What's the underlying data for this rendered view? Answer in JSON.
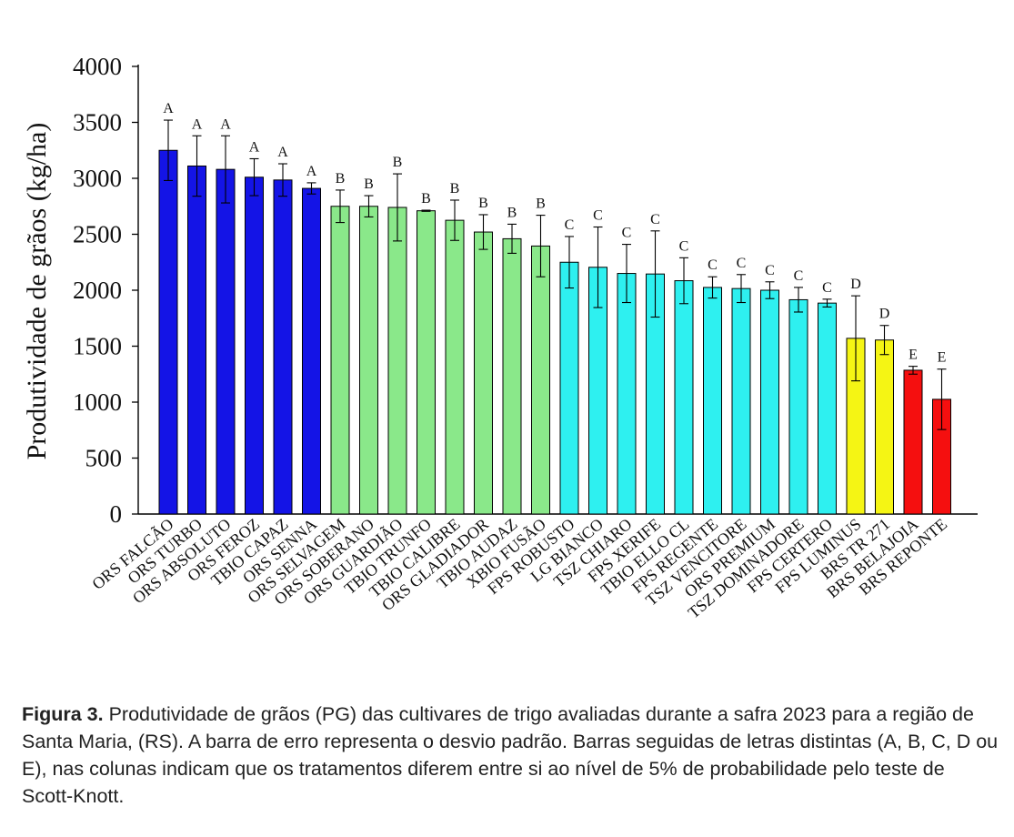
{
  "chart_data": {
    "type": "bar",
    "ylabel": "Produtividade de grãos (kg/ha)",
    "xlabel": "",
    "ylim": [
      0,
      4000
    ],
    "yticks": [
      0,
      500,
      1000,
      1500,
      2000,
      2500,
      3000,
      3500,
      4000
    ],
    "categories": [
      "ORS FALCÃO",
      "ORS TURBO",
      "ORS ABSOLUTO",
      "ORS FEROZ",
      "TBIO CAPAZ",
      "ORS SENNA",
      "ORS SELVAGEM",
      "ORS SOBERANO",
      "ORS GUARDIÃO",
      "TBIO TRUNFO",
      "TBIO CALIBRE",
      "ORS GLADIADOR",
      "TBIO AUDAZ",
      "XBIO FUSÃO",
      "FPS ROBUSTO",
      "LG BIANCO",
      "TSZ CHIARO",
      "FPS XERIFE",
      "TBIO ELLO CL",
      "FPS REGENTE",
      "TSZ VENCITORE",
      "ORS PREMIUM",
      "TSZ DOMINADORE",
      "FPS CERTERO",
      "FPS LUMINUS",
      "BRS TR 271",
      "BRS BELAJOIA",
      "BRS REPONTE"
    ],
    "values": [
      3250,
      3110,
      3080,
      3010,
      2985,
      2910,
      2750,
      2750,
      2740,
      2710,
      2625,
      2520,
      2460,
      2395,
      2250,
      2205,
      2150,
      2145,
      2085,
      2025,
      2015,
      2000,
      1915,
      1885,
      1570,
      1555,
      1285,
      1025
    ],
    "errors": [
      270,
      270,
      300,
      165,
      145,
      50,
      145,
      95,
      300,
      5,
      180,
      155,
      130,
      275,
      230,
      360,
      260,
      385,
      205,
      95,
      125,
      75,
      110,
      35,
      380,
      130,
      35,
      270
    ],
    "groups": [
      "A",
      "A",
      "A",
      "A",
      "A",
      "A",
      "B",
      "B",
      "B",
      "B",
      "B",
      "B",
      "B",
      "B",
      "C",
      "C",
      "C",
      "C",
      "C",
      "C",
      "C",
      "C",
      "C",
      "C",
      "D",
      "D",
      "E",
      "E"
    ],
    "group_colors": {
      "A": "#1414e6",
      "B": "#8ae88a",
      "C": "#2ef0f0",
      "D": "#f5f514",
      "E": "#f50f0f"
    }
  },
  "caption": {
    "label": "Figura 3.",
    "text": "Produtividade de grãos (PG) das cultivares de trigo avaliadas durante a safra 2023 para a região de Santa Maria, (RS). A barra de erro representa o desvio padrão. Barras seguidas de letras distintas (A, B, C, D ou E), nas colunas indicam que os tratamentos diferem entre si ao nível de 5% de probabilidade pelo teste de Scott-Knott."
  }
}
